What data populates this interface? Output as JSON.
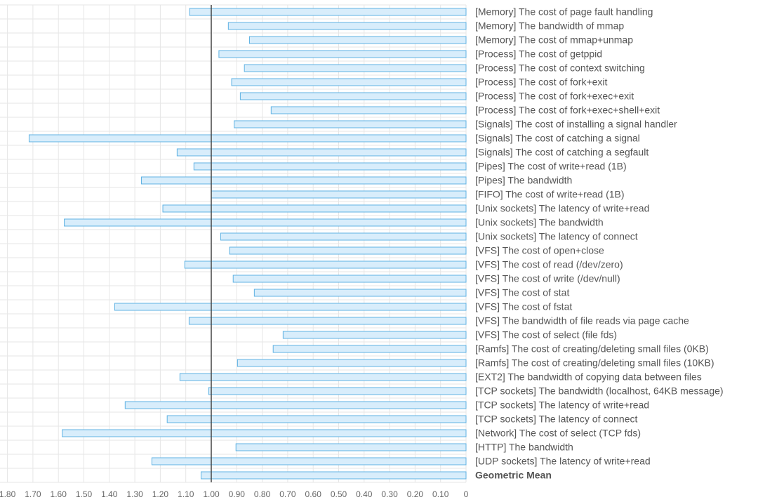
{
  "chart_data": {
    "type": "barh",
    "xaxis_reversed": true,
    "grid": true,
    "color": "#d8edfb",
    "edge_color": "#5fb2e3",
    "reference_line": 1,
    "categories": [
      "[Memory] The cost of page fault handling",
      "[Memory] The bandwidth of mmap",
      "[Memory] The cost of mmap+unmap",
      "[Process] The cost of getppid",
      "[Process] The cost of context switching",
      "[Process] The cost of fork+exit",
      "[Process] The cost of fork+exec+exit",
      "[Process] The cost of fork+exec+shell+exit",
      "[Signals] The cost of installing a signal handler",
      "[Signals] The cost of catching a signal",
      "[Signals] The cost of catching a segfault",
      "[Pipes] The cost of write+read (1B)",
      "[Pipes] The bandwidth",
      "[FIFO] The cost of write+read (1B)",
      "[Unix sockets] The latency of write+read",
      "[Unix sockets] The bandwidth",
      "[Unix sockets] The latency of connect",
      "[VFS] The cost of open+close",
      "[VFS] The cost of read (/dev/zero)",
      "[VFS] The cost of write (/dev/null)",
      "[VFS] The cost of stat",
      "[VFS] The cost of fstat",
      "[VFS] The bandwidth of file reads via page cache",
      "[VFS] The cost of select (file fds)",
      "[Ramfs] The cost of creating/deleting small files (0KB)",
      "[Ramfs] The cost of creating/deleting small files (10KB)",
      "[EXT2] The bandwidth of copying data between files",
      "[TCP sockets] The bandwidth (localhost, 64KB message)",
      "[TCP sockets] The latency of write+read",
      "[TCP sockets] The latency of connect",
      "[Network] The cost of select (TCP fds)",
      "[HTTP] The bandwidth",
      "[UDP sockets] The latency of write+read",
      "Geometric Mean"
    ],
    "values": [
      1.085,
      0.933,
      0.85,
      0.97,
      0.87,
      0.92,
      0.886,
      0.765,
      0.91,
      1.715,
      1.134,
      1.068,
      1.274,
      1.0,
      1.19,
      1.577,
      0.963,
      0.928,
      1.104,
      0.914,
      0.831,
      1.379,
      1.087,
      0.718,
      0.757,
      0.897,
      1.123,
      1.01,
      1.338,
      1.173,
      1.585,
      0.903,
      1.233,
      1.04
    ],
    "xlim": [
      0,
      1.8
    ],
    "xticks": [
      {
        "value": 1.8,
        "label": "1.80"
      },
      {
        "value": 1.7,
        "label": "1.70"
      },
      {
        "value": 1.6,
        "label": "1.60"
      },
      {
        "value": 1.5,
        "label": "1.50"
      },
      {
        "value": 1.4,
        "label": "1.40"
      },
      {
        "value": 1.3,
        "label": "1.30"
      },
      {
        "value": 1.2,
        "label": "1.20"
      },
      {
        "value": 1.1,
        "label": "1.10"
      },
      {
        "value": 1,
        "label": "1.00"
      },
      {
        "value": 0.9,
        "label": "0.90"
      },
      {
        "value": 0.8,
        "label": "0.80"
      },
      {
        "value": 0.7,
        "label": "0.70"
      },
      {
        "value": 0.6,
        "label": "0.60"
      },
      {
        "value": 0.5,
        "label": "0.50"
      },
      {
        "value": 0.4,
        "label": "0.40"
      },
      {
        "value": 0.3,
        "label": "0.30"
      },
      {
        "value": 0.2,
        "label": "0.20"
      },
      {
        "value": 0.1,
        "label": "0.10"
      },
      0
    ]
  }
}
